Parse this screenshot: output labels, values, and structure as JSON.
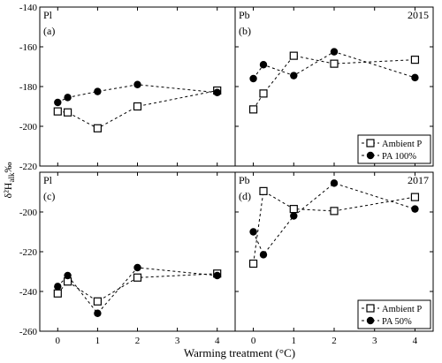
{
  "figure": {
    "shared_ylabel": "δ²H",
    "shared_ylabel_sub": "alk",
    "shared_ylabel_unit": "‰",
    "shared_xlabel": "Warming treatment (°C)"
  },
  "chart_data": [
    {
      "type": "scatter",
      "panel_label": "(a)",
      "species_label": "Pl",
      "year_label": "",
      "x_ticks": [
        0,
        1,
        2,
        3,
        4
      ],
      "y_ticks": [
        -140,
        -160,
        -180,
        -200,
        -220
      ],
      "ylim": [
        -220,
        -140
      ],
      "xlim": [
        -0.45,
        4.45
      ],
      "series": [
        {
          "marker": "open-square",
          "x": [
            0,
            0.25,
            1,
            2,
            4
          ],
          "y": [
            -192.5,
            -193,
            -201,
            -190,
            -182
          ]
        },
        {
          "marker": "filled-circle",
          "x": [
            0,
            0.25,
            1,
            2,
            4
          ],
          "y": [
            -188,
            -185.5,
            -182.5,
            -179,
            -183
          ]
        }
      ],
      "legend": []
    },
    {
      "type": "scatter",
      "panel_label": "(b)",
      "species_label": "Pb",
      "year_label": "2015",
      "x_ticks": [
        0,
        1,
        2,
        3,
        4
      ],
      "y_ticks": [],
      "ylim": [
        -220,
        -140
      ],
      "xlim": [
        -0.45,
        4.45
      ],
      "series": [
        {
          "marker": "open-square",
          "x": [
            0,
            0.25,
            1,
            2,
            4
          ],
          "y": [
            -191.5,
            -183.5,
            -164.5,
            -168.5,
            -166.5
          ]
        },
        {
          "marker": "filled-circle",
          "x": [
            0,
            0.25,
            1,
            2,
            4
          ],
          "y": [
            -176,
            -169,
            -174.5,
            -162.5,
            -175.5
          ]
        }
      ],
      "legend": [
        {
          "marker": "open-square",
          "label": "Ambient P"
        },
        {
          "marker": "filled-circle",
          "label": "PA 100%"
        }
      ]
    },
    {
      "type": "scatter",
      "panel_label": "(c)",
      "species_label": "Pl",
      "year_label": "",
      "x_ticks": [
        0,
        1,
        2,
        3,
        4
      ],
      "y_ticks": [
        -200,
        -220,
        -240,
        -260
      ],
      "ylim": [
        -260,
        -180
      ],
      "xlim": [
        -0.45,
        4.45
      ],
      "series": [
        {
          "marker": "open-square",
          "x": [
            0,
            0.25,
            1,
            2,
            4
          ],
          "y": [
            -241,
            -235,
            -245,
            -233,
            -231
          ]
        },
        {
          "marker": "filled-circle",
          "x": [
            0,
            0.25,
            1,
            2,
            4
          ],
          "y": [
            -237.5,
            -232,
            -251,
            -228,
            -232
          ]
        }
      ],
      "legend": []
    },
    {
      "type": "scatter",
      "panel_label": "(d)",
      "species_label": "Pb",
      "year_label": "2017",
      "x_ticks": [
        0,
        1,
        2,
        3,
        4
      ],
      "y_ticks": [],
      "ylim": [
        -260,
        -180
      ],
      "xlim": [
        -0.45,
        4.45
      ],
      "series": [
        {
          "marker": "open-square",
          "x": [
            0,
            0.25,
            1,
            2,
            4
          ],
          "y": [
            -226,
            -189.5,
            -198.5,
            -199.5,
            -192.5
          ]
        },
        {
          "marker": "filled-circle",
          "x": [
            0,
            0.25,
            1,
            2,
            4
          ],
          "y": [
            -210,
            -221.5,
            -202,
            -185.5,
            -198.5
          ]
        }
      ],
      "legend": [
        {
          "marker": "open-square",
          "label": "Ambient P"
        },
        {
          "marker": "filled-circle",
          "label": "PA  50%"
        }
      ]
    }
  ]
}
